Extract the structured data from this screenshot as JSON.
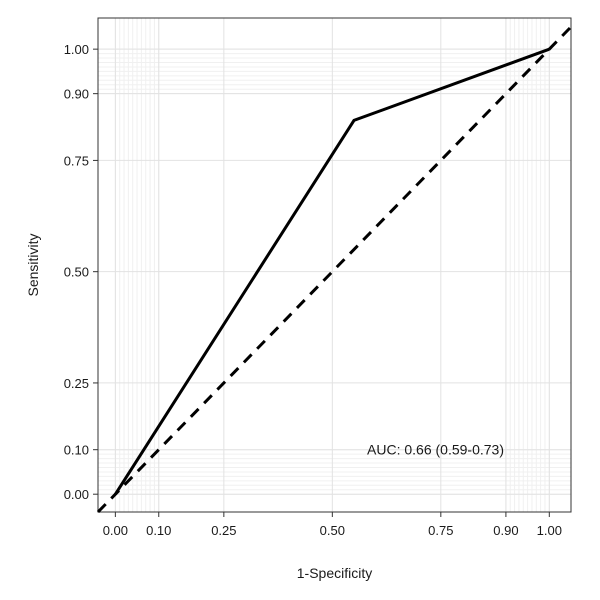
{
  "chart_data": {
    "type": "line",
    "title": "",
    "xlabel": "1-Specificity",
    "ylabel": "Sensitivity",
    "xlim": [
      -0.04,
      1.05
    ],
    "ylim": [
      -0.04,
      1.07
    ],
    "x_ticks": [
      {
        "value": 0.0,
        "label": "0.00"
      },
      {
        "value": 0.1,
        "label": "0.10"
      },
      {
        "value": 0.25,
        "label": "0.25"
      },
      {
        "value": 0.5,
        "label": "0.50"
      },
      {
        "value": 0.75,
        "label": "0.75"
      },
      {
        "value": 0.9,
        "label": "0.90"
      },
      {
        "value": 1.0,
        "label": "1.00"
      }
    ],
    "y_ticks": [
      {
        "value": 0.0,
        "label": "0.00"
      },
      {
        "value": 0.1,
        "label": "0.10"
      },
      {
        "value": 0.25,
        "label": "0.25"
      },
      {
        "value": 0.5,
        "label": "0.50"
      },
      {
        "value": 0.75,
        "label": "0.75"
      },
      {
        "value": 0.9,
        "label": "0.90"
      },
      {
        "value": 1.0,
        "label": "1.00"
      }
    ],
    "grid": true,
    "series": [
      {
        "style": "solid",
        "color": "#000000",
        "points": [
          [
            0.0,
            0.0
          ],
          [
            0.55,
            0.84
          ],
          [
            1.0,
            1.0
          ]
        ]
      },
      {
        "style": "dashed",
        "color": "#000000",
        "points": [
          [
            -0.04,
            -0.04
          ],
          [
            1.05,
            1.05
          ]
        ]
      }
    ],
    "annotation": {
      "text": "AUC: 0.66 (0.59-0.73)",
      "x": 0.58,
      "y": 0.1
    }
  }
}
